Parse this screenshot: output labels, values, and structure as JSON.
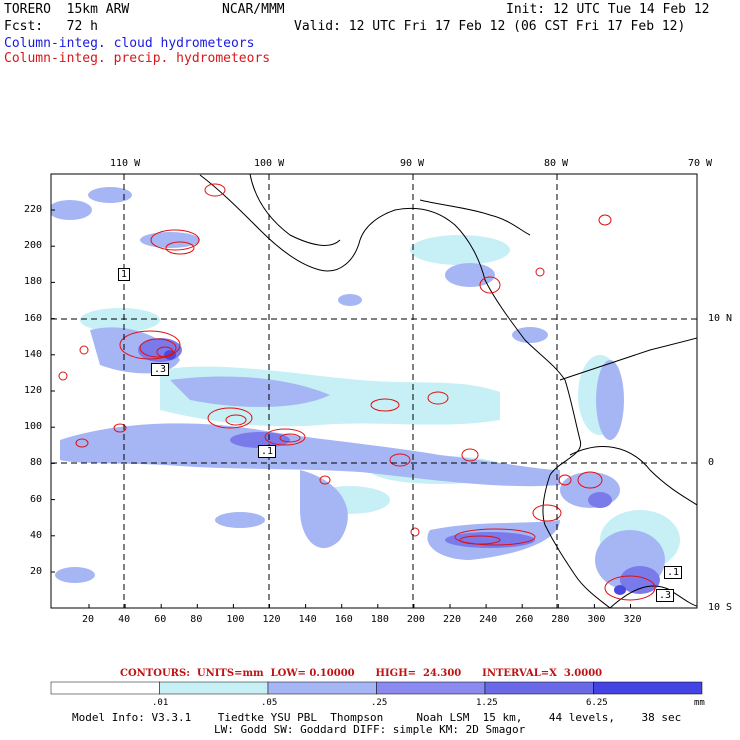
{
  "header": {
    "model": "TORERO  15km ARW",
    "center": "NCAR/MMM",
    "init": "Init: 12 UTC Tue 14 Feb 12",
    "fcst": "Fcst:   72 h",
    "valid": "Valid: 12 UTC Fri 17 Feb 12 (06 CST Fri 17 Feb 12)",
    "field1": "Column-integ. cloud hydrometeors",
    "field2": "Column-integ. precip. hydrometeors"
  },
  "map": {
    "lon_labels": [
      "110 W",
      "100 W",
      "90 W",
      "80 W",
      "70 W"
    ],
    "lat_labels": [
      "10 N",
      "0",
      "10 S"
    ],
    "x_ticks": [
      "20",
      "40",
      "60",
      "80",
      "100",
      "120",
      "140",
      "160",
      "180",
      "200",
      "220",
      "240",
      "260",
      "280",
      "300",
      "320"
    ],
    "y_ticks": [
      "20",
      "40",
      "60",
      "80",
      "100",
      "120",
      "140",
      "160",
      "180",
      "200",
      "220"
    ],
    "contour_labels": [
      "1",
      ".3",
      ".1",
      ".1",
      ".3"
    ],
    "colors": {
      "cloud_light": "#c6f0f5",
      "cloud_mid": "#a6b6f5",
      "cloud_dark": "#7878ea",
      "cloud_max": "#4a4ae0",
      "precip": "#e01010",
      "coast": "#000000"
    }
  },
  "contours": {
    "line": "CONTOURS:  UNITS=mm  LOW= 0.10000      HIGH=  24.300      INTERVAL=X  3.0000"
  },
  "colorbar": {
    "labels": [
      ".01",
      ".05",
      ".25",
      "1.25",
      "6.25"
    ],
    "units": "mm",
    "colors": [
      "#ffffff",
      "#c6f0f5",
      "#a6b6f5",
      "#8a8af0",
      "#6a6ae8",
      "#4444e4"
    ]
  },
  "footer": {
    "line1": "Model Info: V3.3.1    Tiedtke YSU PBL  Thompson     Noah LSM  15 km,    44 levels,    38 sec",
    "line2": "LW: Godd SW: Goddard DIFF: simple KM: 2D Smagor"
  }
}
